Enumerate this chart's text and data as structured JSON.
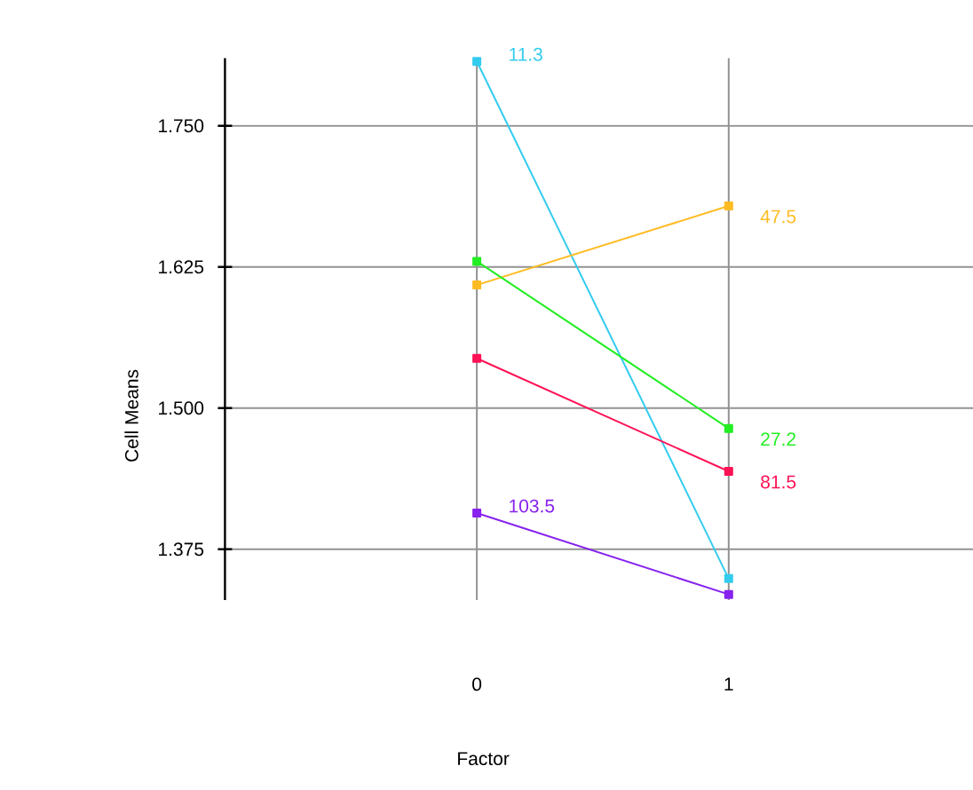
{
  "chart_data": {
    "type": "line",
    "xlabel": "Factor",
    "ylabel": "Cell Means",
    "categories": [
      "0",
      "1"
    ],
    "series": [
      {
        "name": "11.3",
        "color": "#33ccee",
        "values": [
          1.807,
          1.349
        ]
      },
      {
        "name": "47.5",
        "color": "#ffbb22",
        "values": [
          1.609,
          1.679
        ]
      },
      {
        "name": "27.2",
        "color": "#22ee22",
        "values": [
          1.63,
          1.482
        ]
      },
      {
        "name": "81.5",
        "color": "#ff1155",
        "values": [
          1.544,
          1.444
        ]
      },
      {
        "name": "103.5",
        "color": "#8822ee",
        "values": [
          1.407,
          1.335
        ]
      }
    ],
    "ylim": [
      1.33,
      1.81
    ],
    "yticks": [
      {
        "value": 1.375,
        "label": "1.375"
      },
      {
        "value": 1.5,
        "label": "1.500"
      },
      {
        "value": 1.625,
        "label": "1.625"
      },
      {
        "value": 1.75,
        "label": "1.750"
      }
    ],
    "grid": true,
    "legend": false,
    "marker": "square",
    "line_style": "solid"
  }
}
